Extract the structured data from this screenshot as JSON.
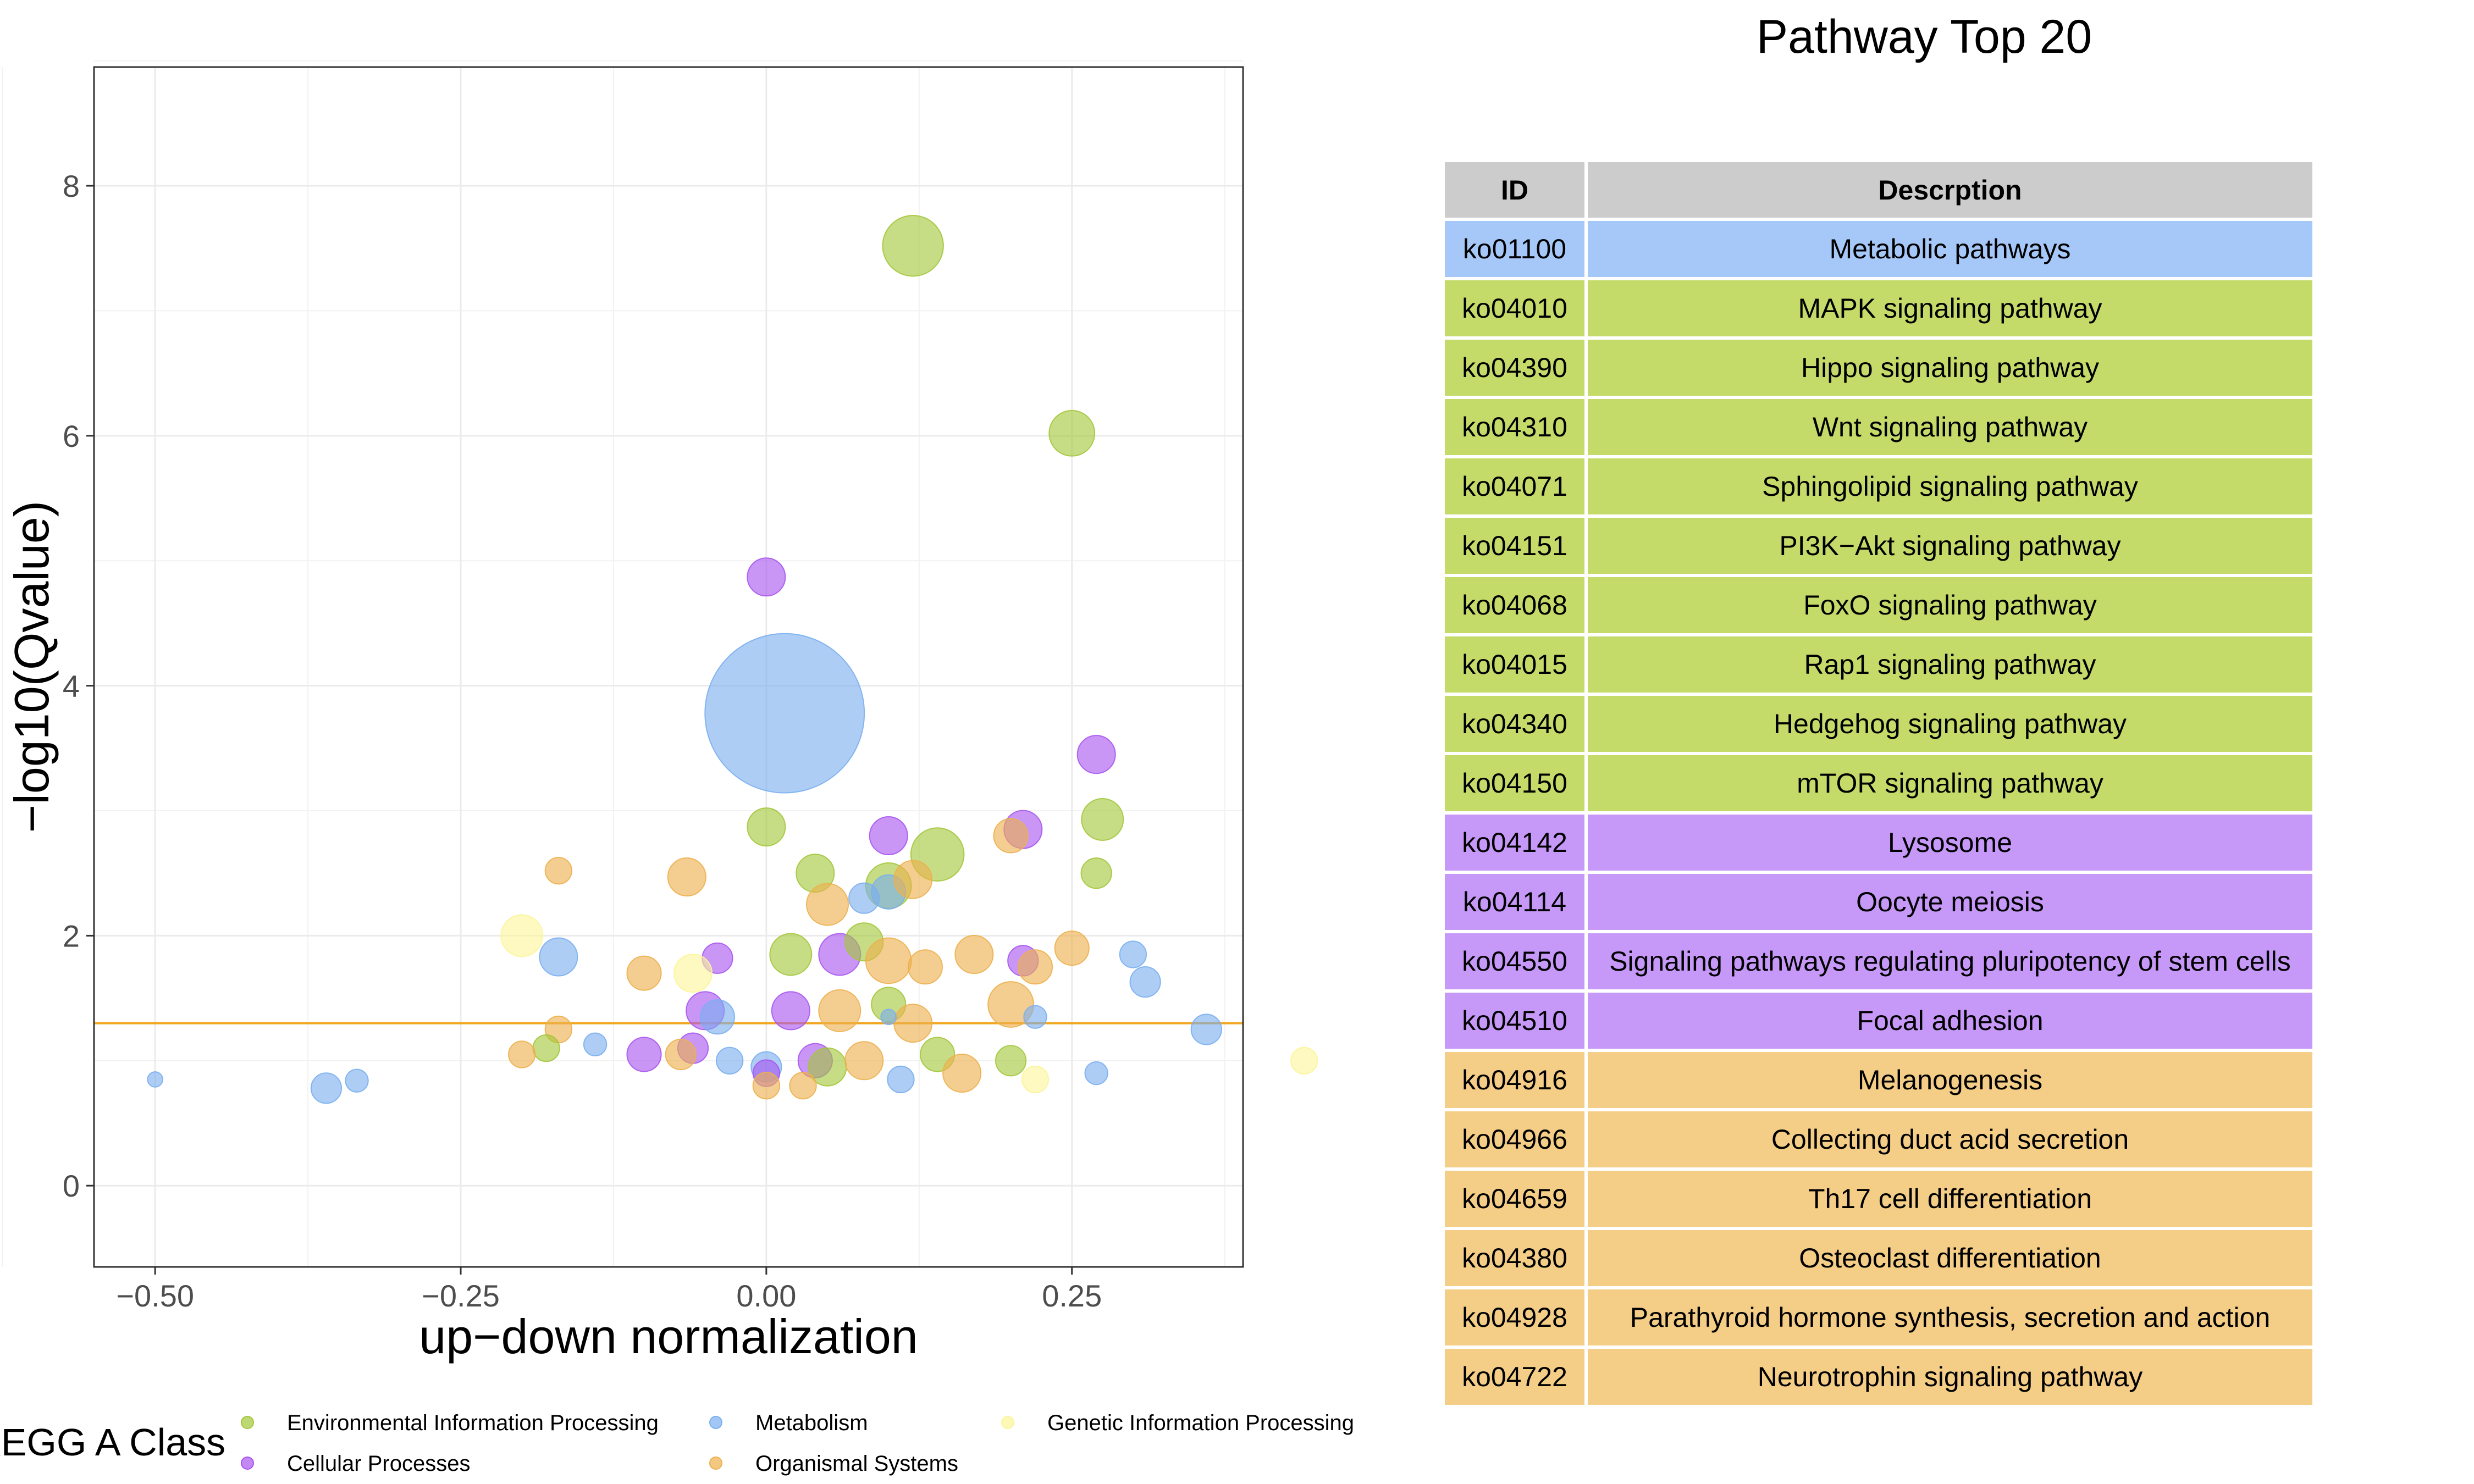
{
  "chart_data": {
    "type": "scatter",
    "xlabel": "up−down normalization",
    "ylabel": "−log10(Qvalue)",
    "xlim": [
      -0.55,
      0.39
    ],
    "ylim": [
      -0.65,
      8.95
    ],
    "xticks": [
      -0.5,
      -0.25,
      0.0,
      0.25
    ],
    "xtick_labels": [
      "−0.50",
      "−0.25",
      "0.00",
      "0.25"
    ],
    "yticks": [
      0,
      2,
      4,
      6,
      8
    ],
    "ytick_labels": [
      "0",
      "2",
      "4",
      "6",
      "8"
    ],
    "grid": true,
    "threshold_y": 1.3,
    "threshold_color": "#F0A61E",
    "legend_title": "KEGG A Class",
    "legend_position": "bottom",
    "classes": [
      {
        "name": "Environmental Information Processing",
        "color": "#A3C73A"
      },
      {
        "name": "Metabolism",
        "color": "#7AAFEF"
      },
      {
        "name": "Genetic Information Processing",
        "color": "#FBF59A"
      },
      {
        "name": "Cellular Processes",
        "color": "#A855F0"
      },
      {
        "name": "Organismal Systems",
        "color": "#EDB04E"
      }
    ],
    "legend_rows": [
      [
        "Environmental Information Processing",
        "Metabolism",
        "Genetic Information Processing"
      ],
      [
        "Cellular Processes",
        "Organismal Systems"
      ]
    ],
    "points": [
      {
        "x": 0.12,
        "y": 7.52,
        "size": 16,
        "class": "Environmental Information Processing"
      },
      {
        "x": 0.25,
        "y": 6.02,
        "size": 12,
        "class": "Environmental Information Processing"
      },
      {
        "x": 0.0,
        "y": 4.87,
        "size": 10,
        "class": "Cellular Processes"
      },
      {
        "x": 0.015,
        "y": 3.78,
        "size": 42,
        "class": "Metabolism"
      },
      {
        "x": 0.27,
        "y": 3.45,
        "size": 10,
        "class": "Cellular Processes"
      },
      {
        "x": 0.275,
        "y": 2.93,
        "size": 11,
        "class": "Environmental Information Processing"
      },
      {
        "x": 0.0,
        "y": 2.87,
        "size": 10,
        "class": "Environmental Information Processing"
      },
      {
        "x": 0.21,
        "y": 2.85,
        "size": 10,
        "class": "Cellular Processes"
      },
      {
        "x": 0.2,
        "y": 2.8,
        "size": 9,
        "class": "Organismal Systems"
      },
      {
        "x": 0.1,
        "y": 2.8,
        "size": 10,
        "class": "Cellular Processes"
      },
      {
        "x": 0.14,
        "y": 2.65,
        "size": 14,
        "class": "Environmental Information Processing"
      },
      {
        "x": 0.27,
        "y": 2.5,
        "size": 8,
        "class": "Environmental Information Processing"
      },
      {
        "x": -0.17,
        "y": 2.52,
        "size": 7,
        "class": "Organismal Systems"
      },
      {
        "x": -0.065,
        "y": 2.47,
        "size": 10,
        "class": "Organismal Systems"
      },
      {
        "x": 0.04,
        "y": 2.5,
        "size": 10,
        "class": "Environmental Information Processing"
      },
      {
        "x": 0.1,
        "y": 2.4,
        "size": 12,
        "class": "Environmental Information Processing"
      },
      {
        "x": 0.1,
        "y": 2.35,
        "size": 9,
        "class": "Metabolism"
      },
      {
        "x": 0.08,
        "y": 2.3,
        "size": 8,
        "class": "Metabolism"
      },
      {
        "x": 0.12,
        "y": 2.45,
        "size": 10,
        "class": "Organismal Systems"
      },
      {
        "x": 0.05,
        "y": 2.25,
        "size": 11,
        "class": "Organismal Systems"
      },
      {
        "x": -0.2,
        "y": 2.0,
        "size": 11,
        "class": "Genetic Information Processing"
      },
      {
        "x": -0.17,
        "y": 1.83,
        "size": 10,
        "class": "Metabolism"
      },
      {
        "x": -0.04,
        "y": 1.82,
        "size": 8,
        "class": "Cellular Processes"
      },
      {
        "x": -0.1,
        "y": 1.7,
        "size": 9,
        "class": "Organismal Systems"
      },
      {
        "x": -0.06,
        "y": 1.7,
        "size": 10,
        "class": "Genetic Information Processing"
      },
      {
        "x": 0.02,
        "y": 1.85,
        "size": 11,
        "class": "Environmental Information Processing"
      },
      {
        "x": 0.06,
        "y": 1.85,
        "size": 11,
        "class": "Cellular Processes"
      },
      {
        "x": 0.08,
        "y": 1.95,
        "size": 10,
        "class": "Environmental Information Processing"
      },
      {
        "x": 0.1,
        "y": 1.8,
        "size": 12,
        "class": "Organismal Systems"
      },
      {
        "x": 0.13,
        "y": 1.75,
        "size": 9,
        "class": "Organismal Systems"
      },
      {
        "x": 0.17,
        "y": 1.85,
        "size": 10,
        "class": "Organismal Systems"
      },
      {
        "x": 0.21,
        "y": 1.8,
        "size": 8,
        "class": "Cellular Processes"
      },
      {
        "x": 0.22,
        "y": 1.75,
        "size": 9,
        "class": "Organismal Systems"
      },
      {
        "x": 0.25,
        "y": 1.9,
        "size": 9,
        "class": "Organismal Systems"
      },
      {
        "x": 0.3,
        "y": 1.85,
        "size": 7,
        "class": "Metabolism"
      },
      {
        "x": 0.31,
        "y": 1.63,
        "size": 8,
        "class": "Metabolism"
      },
      {
        "x": 0.36,
        "y": 1.25,
        "size": 8,
        "class": "Metabolism"
      },
      {
        "x": 0.44,
        "y": 1.0,
        "size": 7,
        "class": "Genetic Information Processing"
      },
      {
        "x": -0.05,
        "y": 1.4,
        "size": 10,
        "class": "Cellular Processes"
      },
      {
        "x": -0.04,
        "y": 1.35,
        "size": 9,
        "class": "Metabolism"
      },
      {
        "x": 0.02,
        "y": 1.4,
        "size": 10,
        "class": "Cellular Processes"
      },
      {
        "x": 0.06,
        "y": 1.4,
        "size": 11,
        "class": "Organismal Systems"
      },
      {
        "x": 0.1,
        "y": 1.45,
        "size": 9,
        "class": "Environmental Information Processing"
      },
      {
        "x": 0.12,
        "y": 1.3,
        "size": 10,
        "class": "Organismal Systems"
      },
      {
        "x": 0.2,
        "y": 1.45,
        "size": 12,
        "class": "Organismal Systems"
      },
      {
        "x": 0.22,
        "y": 1.35,
        "size": 6,
        "class": "Metabolism"
      },
      {
        "x": 0.1,
        "y": 1.35,
        "size": 4,
        "class": "Metabolism"
      },
      {
        "x": -0.17,
        "y": 1.25,
        "size": 7,
        "class": "Organismal Systems"
      },
      {
        "x": -0.14,
        "y": 1.13,
        "size": 6,
        "class": "Metabolism"
      },
      {
        "x": -0.18,
        "y": 1.1,
        "size": 7,
        "class": "Environmental Information Processing"
      },
      {
        "x": -0.2,
        "y": 1.05,
        "size": 7,
        "class": "Organismal Systems"
      },
      {
        "x": -0.1,
        "y": 1.05,
        "size": 9,
        "class": "Cellular Processes"
      },
      {
        "x": -0.06,
        "y": 1.1,
        "size": 8,
        "class": "Cellular Processes"
      },
      {
        "x": -0.07,
        "y": 1.05,
        "size": 8,
        "class": "Organismal Systems"
      },
      {
        "x": -0.03,
        "y": 1.0,
        "size": 7,
        "class": "Metabolism"
      },
      {
        "x": 0.0,
        "y": 0.95,
        "size": 8,
        "class": "Metabolism"
      },
      {
        "x": 0.0,
        "y": 0.9,
        "size": 7,
        "class": "Cellular Processes"
      },
      {
        "x": 0.04,
        "y": 1.0,
        "size": 9,
        "class": "Cellular Processes"
      },
      {
        "x": 0.05,
        "y": 0.95,
        "size": 10,
        "class": "Environmental Information Processing"
      },
      {
        "x": 0.08,
        "y": 1.0,
        "size": 10,
        "class": "Organismal Systems"
      },
      {
        "x": 0.11,
        "y": 0.85,
        "size": 7,
        "class": "Metabolism"
      },
      {
        "x": 0.14,
        "y": 1.05,
        "size": 9,
        "class": "Environmental Information Processing"
      },
      {
        "x": 0.16,
        "y": 0.9,
        "size": 10,
        "class": "Organismal Systems"
      },
      {
        "x": 0.2,
        "y": 1.0,
        "size": 8,
        "class": "Environmental Information Processing"
      },
      {
        "x": 0.22,
        "y": 0.85,
        "size": 7,
        "class": "Genetic Information Processing"
      },
      {
        "x": 0.27,
        "y": 0.9,
        "size": 6,
        "class": "Metabolism"
      },
      {
        "x": 0.0,
        "y": 0.8,
        "size": 7,
        "class": "Organismal Systems"
      },
      {
        "x": 0.03,
        "y": 0.8,
        "size": 7,
        "class": "Organismal Systems"
      },
      {
        "x": -0.5,
        "y": 0.85,
        "size": 4,
        "class": "Metabolism"
      },
      {
        "x": -0.36,
        "y": 0.78,
        "size": 8,
        "class": "Metabolism"
      },
      {
        "x": -0.335,
        "y": 0.84,
        "size": 6,
        "class": "Metabolism"
      }
    ]
  },
  "table": {
    "title": "Pathway Top 20",
    "headers": [
      "ID",
      "Descrption"
    ],
    "header_color": "#CCCCCC",
    "rows": [
      {
        "id": "ko01100",
        "description": "Metabolic pathways",
        "class": "Metabolism"
      },
      {
        "id": "ko04010",
        "description": "MAPK signaling pathway",
        "class": "Environmental Information Processing"
      },
      {
        "id": "ko04390",
        "description": "Hippo signaling pathway",
        "class": "Environmental Information Processing"
      },
      {
        "id": "ko04310",
        "description": "Wnt signaling pathway",
        "class": "Environmental Information Processing"
      },
      {
        "id": "ko04071",
        "description": "Sphingolipid signaling pathway",
        "class": "Environmental Information Processing"
      },
      {
        "id": "ko04151",
        "description": "PI3K−Akt signaling pathway",
        "class": "Environmental Information Processing"
      },
      {
        "id": "ko04068",
        "description": "FoxO signaling pathway",
        "class": "Environmental Information Processing"
      },
      {
        "id": "ko04015",
        "description": "Rap1 signaling pathway",
        "class": "Environmental Information Processing"
      },
      {
        "id": "ko04340",
        "description": "Hedgehog signaling pathway",
        "class": "Environmental Information Processing"
      },
      {
        "id": "ko04150",
        "description": "mTOR signaling pathway",
        "class": "Environmental Information Processing"
      },
      {
        "id": "ko04142",
        "description": "Lysosome",
        "class": "Cellular Processes"
      },
      {
        "id": "ko04114",
        "description": "Oocyte meiosis",
        "class": "Cellular Processes"
      },
      {
        "id": "ko04550",
        "description": "Signaling pathways regulating pluripotency of stem cells",
        "class": "Cellular Processes"
      },
      {
        "id": "ko04510",
        "description": "Focal adhesion",
        "class": "Cellular Processes"
      },
      {
        "id": "ko04916",
        "description": "Melanogenesis",
        "class": "Organismal Systems"
      },
      {
        "id": "ko04966",
        "description": "Collecting duct acid secretion",
        "class": "Organismal Systems"
      },
      {
        "id": "ko04659",
        "description": "Th17 cell differentiation",
        "class": "Organismal Systems"
      },
      {
        "id": "ko04380",
        "description": "Osteoclast differentiation",
        "class": "Organismal Systems"
      },
      {
        "id": "ko04928",
        "description": "Parathyroid hormone synthesis, secretion and action",
        "class": "Organismal Systems"
      },
      {
        "id": "ko04722",
        "description": "Neurotrophin signaling pathway",
        "class": "Organismal Systems"
      }
    ],
    "row_colors": {
      "Metabolism": "#A6C8F9",
      "Environmental Information Processing": "#C4DB6A",
      "Cellular Processes": "#C698F8",
      "Organismal Systems": "#F4CD86"
    }
  }
}
